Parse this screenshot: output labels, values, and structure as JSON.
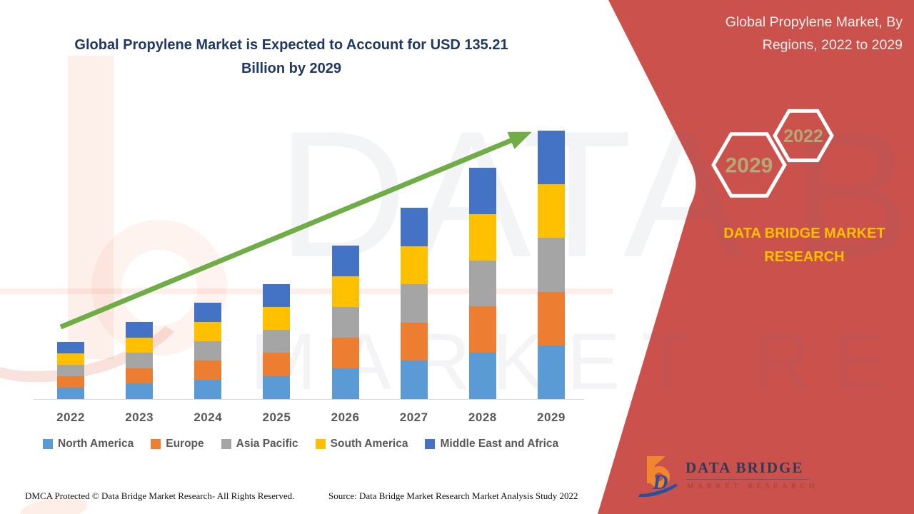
{
  "left": {
    "title": "Global Propylene Market is Expected to Account for USD 135.21 Billion by 2029"
  },
  "panel": {
    "title": "Global Propylene Market, By Regions, 2022 to 2029",
    "hexagons": {
      "front_label": "2029",
      "back_label": "2022"
    },
    "brand": "DATA BRIDGE MARKET RESEARCH",
    "background_color": "#CB514C",
    "hex_text_color": "#B5A878",
    "brand_color": "#FFC000"
  },
  "watermark": {
    "line1": "DATA BRIDGE",
    "line2": "MARKET RESEARCH"
  },
  "footer": {
    "dmca": "DMCA Protected © Data Bridge Market Research- All Rights Reserved.",
    "source": "Source: Data Bridge Market Research Market Analysis Study 2022"
  },
  "logo": {
    "name": "DATA BRIDGE",
    "tagline": "MARKET RESEARCH",
    "monogram": "D"
  },
  "chart_data": {
    "type": "bar",
    "stacked": true,
    "title": "Global Propylene Market is Expected to Account for USD 135.21 Billion by 2029",
    "unit": "USD Billion",
    "categories": [
      "2022",
      "2023",
      "2024",
      "2025",
      "2026",
      "2027",
      "2028",
      "2029"
    ],
    "series": [
      {
        "name": "North America",
        "color": "#5B9BD5",
        "values": [
          5.75,
          7.77,
          9.7,
          11.6,
          15.46,
          19.28,
          23.3,
          27.04
        ]
      },
      {
        "name": "Europe",
        "color": "#ED7D31",
        "values": [
          5.75,
          7.77,
          9.7,
          11.6,
          15.46,
          19.28,
          23.3,
          27.04
        ]
      },
      {
        "name": "Asia Pacific",
        "color": "#A5A5A5",
        "values": [
          5.75,
          7.77,
          9.7,
          11.6,
          15.46,
          19.28,
          23.3,
          27.04
        ]
      },
      {
        "name": "South America",
        "color": "#FFC000",
        "values": [
          5.75,
          7.77,
          9.7,
          11.6,
          15.46,
          19.28,
          23.3,
          27.04
        ]
      },
      {
        "name": "Middle East and Africa",
        "color": "#4472C4",
        "values": [
          5.75,
          7.77,
          9.7,
          11.6,
          15.46,
          19.28,
          23.3,
          27.04
        ]
      }
    ],
    "totals_usd_billion": [
      28.8,
      38.8,
      48.5,
      58.0,
      77.3,
      96.4,
      116.5,
      135.21
    ],
    "highlight": "USD 135.21 Billion by 2029",
    "annotation": "upward trend arrow",
    "arrow_color": "#70AD47",
    "legend_position": "bottom",
    "gridlines": false,
    "ylim": [
      0,
      140
    ]
  }
}
